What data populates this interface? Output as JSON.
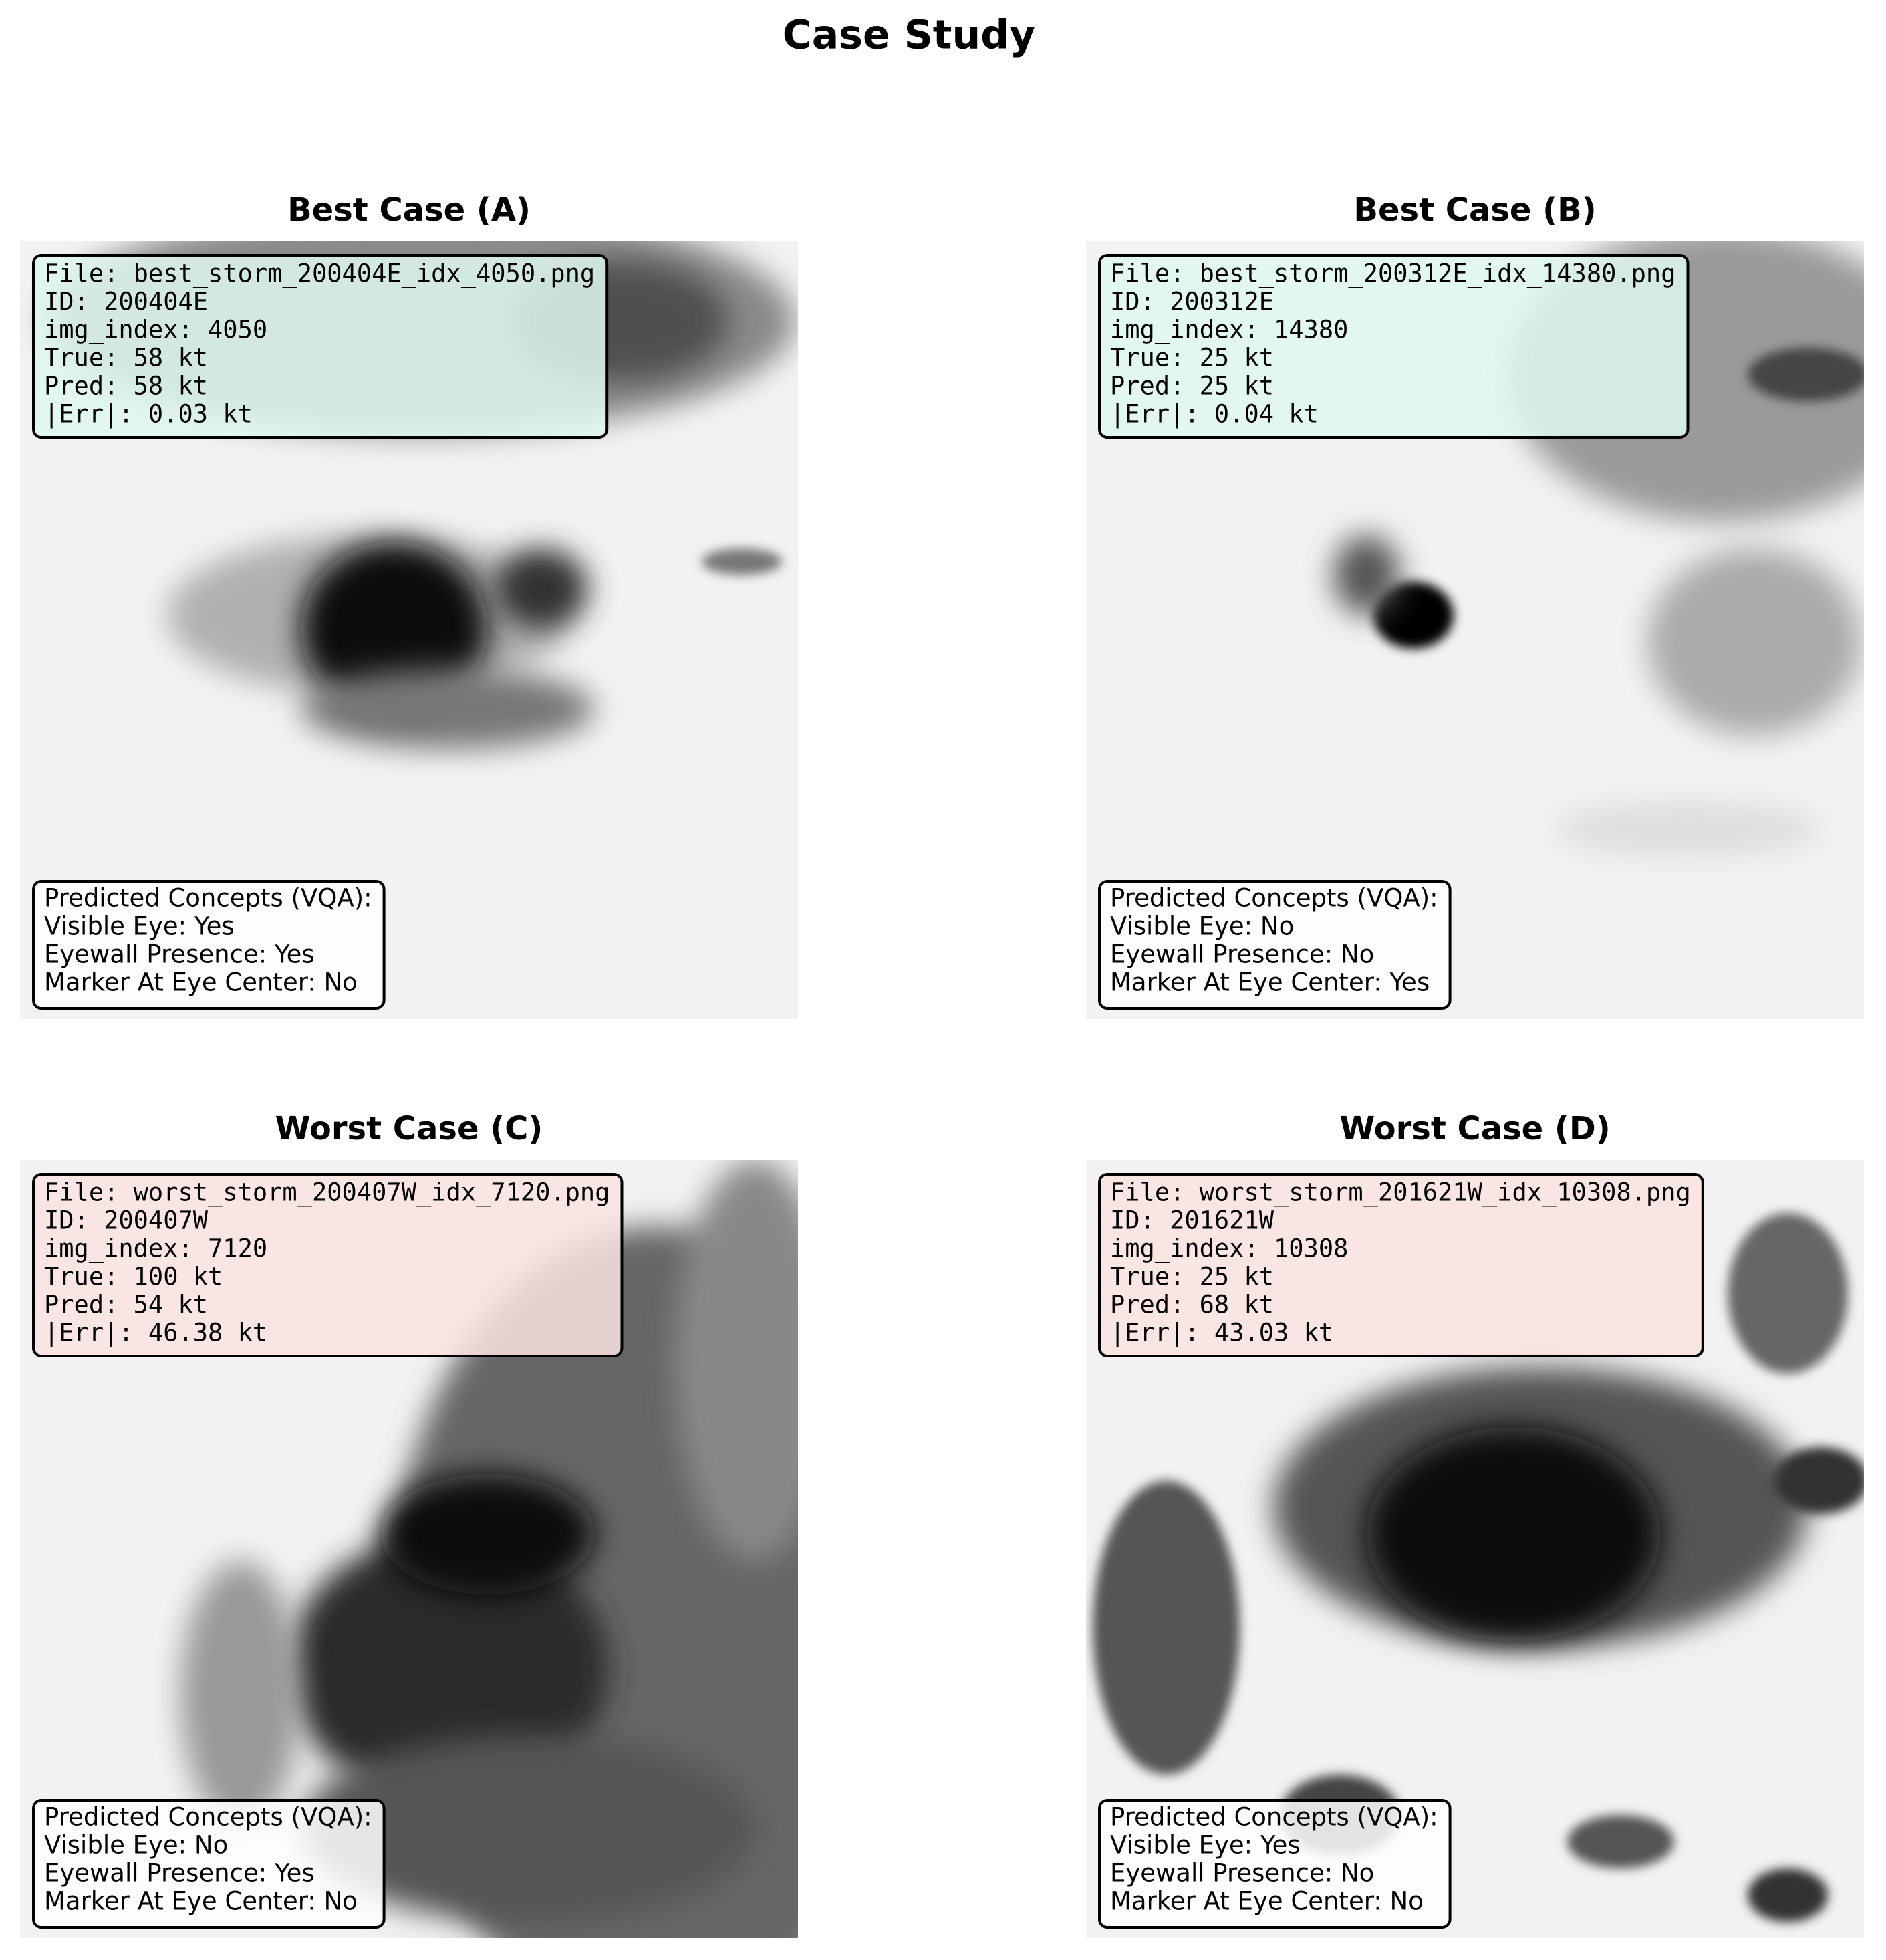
{
  "title": "Case Study",
  "panels": [
    {
      "title": "Best Case (A)",
      "box_color": "#dff8f2",
      "info": [
        "File: best_storm_200404E_idx_4050.png",
        "ID: 200404E",
        "img_index: 4050",
        "True: 58 kt",
        "Pred: 58 kt",
        "|Err|: 0.03 kt"
      ],
      "concepts": [
        "Predicted Concepts (VQA):",
        "Visible Eye: Yes",
        "Eyewall Presence: Yes",
        "Marker At Eye Center: No"
      ]
    },
    {
      "title": "Best Case (B)",
      "box_color": "#dff8f2",
      "info": [
        "File: best_storm_200312E_idx_14380.png",
        "ID: 200312E",
        "img_index: 14380",
        "True: 25 kt",
        "Pred: 25 kt",
        "|Err|: 0.04 kt"
      ],
      "concepts": [
        "Predicted Concepts (VQA):",
        "Visible Eye: No",
        "Eyewall Presence: No",
        "Marker At Eye Center: Yes"
      ]
    },
    {
      "title": "Worst Case (C)",
      "box_color": "#fbe3e3",
      "info": [
        "File: worst_storm_200407W_idx_7120.png",
        "ID: 200407W",
        "img_index: 7120",
        "True: 100 kt",
        "Pred: 54 kt",
        "|Err|: 46.38 kt"
      ],
      "concepts": [
        "Predicted Concepts (VQA):",
        "Visible Eye: No",
        "Eyewall Presence: Yes",
        "Marker At Eye Center: No"
      ]
    },
    {
      "title": "Worst Case (D)",
      "box_color": "#fbe3e3",
      "info": [
        "File: worst_storm_201621W_idx_10308.png",
        "ID: 201621W",
        "img_index: 10308",
        "True: 25 kt",
        "Pred: 68 kt",
        "|Err|: 43.03 kt"
      ],
      "concepts": [
        "Predicted Concepts (VQA):",
        "Visible Eye: Yes",
        "Eyewall Presence: No",
        "Marker At Eye Center: No"
      ]
    }
  ]
}
